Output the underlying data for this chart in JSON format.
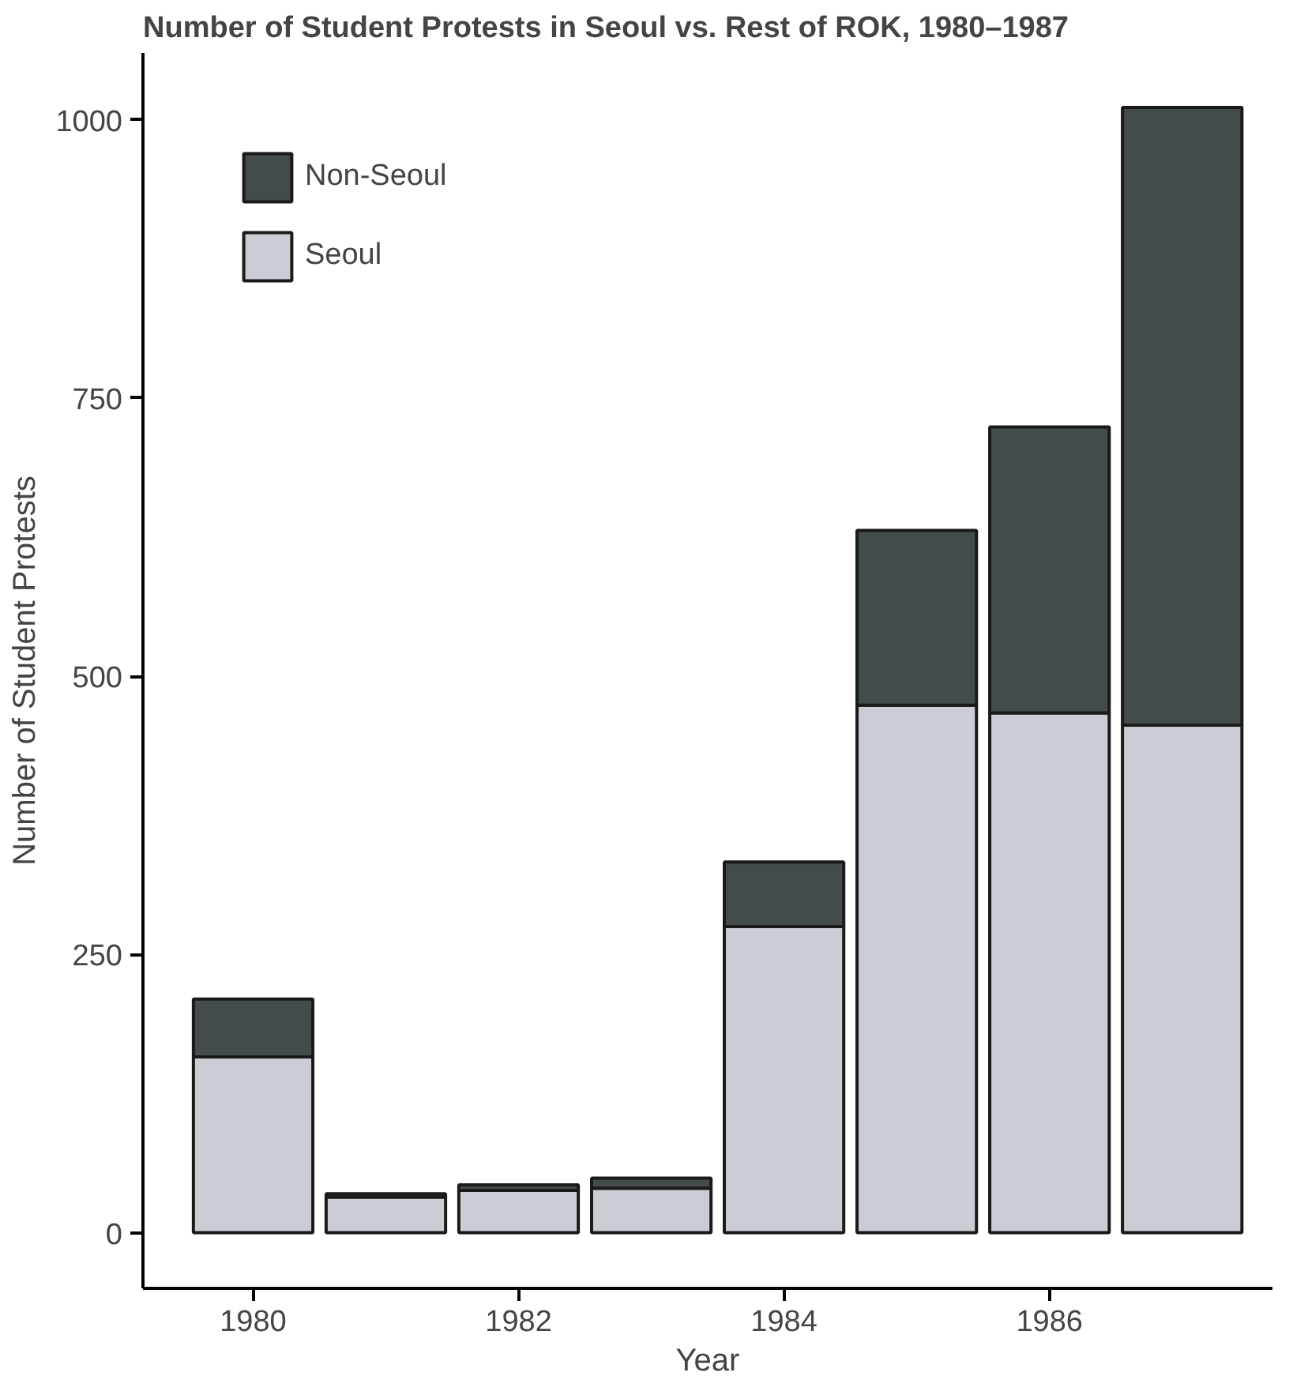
{
  "chart_data": {
    "type": "bar",
    "stacked": true,
    "title": "Number of Student Protests in Seoul vs. Rest of ROK, 1980–1987",
    "xlabel": "Year",
    "ylabel": "Number of Student Protests",
    "x": [
      1980,
      1981,
      1982,
      1983,
      1984,
      1985,
      1986,
      1987
    ],
    "series": [
      {
        "name": "Seoul",
        "color": "#cbcdd4",
        "values": [
          158,
          32,
          38,
          40,
          275,
          474,
          467,
          456
        ]
      },
      {
        "name": "Non-Seoul",
        "color": "#434b4d",
        "values": [
          52,
          3,
          5,
          9,
          58,
          157,
          257,
          555
        ]
      }
    ],
    "xlim": [
      1979.17,
      1987.68
    ],
    "xticks": [
      1980,
      1982,
      1984,
      1986
    ],
    "ylim": [
      -50,
      1060
    ],
    "yticks": [
      0,
      250,
      500,
      750,
      1000
    ],
    "grid": false,
    "legend": "top left"
  }
}
